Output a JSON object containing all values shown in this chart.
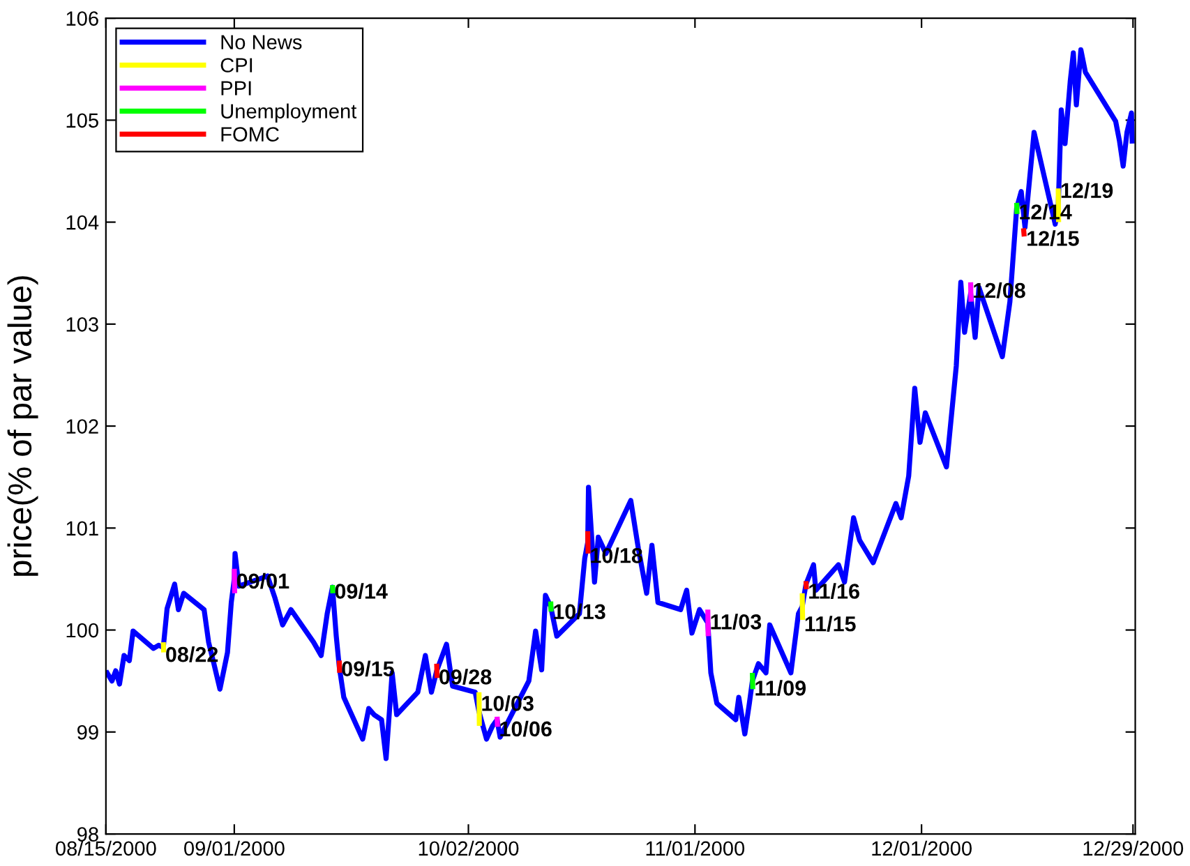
{
  "chart_data": {
    "type": "line",
    "ylabel": "price(% of par value)",
    "xlim": [
      "2000-08-15",
      "2000-12-29T07:12"
    ],
    "ylim": [
      98,
      106
    ],
    "yticks": [
      98,
      99,
      100,
      101,
      102,
      103,
      104,
      105,
      106
    ],
    "xticks": [
      {
        "value": "2000-08-15",
        "label": "08/15/2000"
      },
      {
        "value": "2000-09-01",
        "label": "09/01/2000"
      },
      {
        "value": "2000-10-02",
        "label": "10/02/2000"
      },
      {
        "value": "2000-11-01",
        "label": "11/01/2000"
      },
      {
        "value": "2000-12-01",
        "label": "12/01/2000"
      },
      {
        "value": "2000-12-29",
        "label": "12/29/2000"
      }
    ],
    "grid": false,
    "legend": "top left",
    "line_style": "solid",
    "marker": "none",
    "series": [
      {
        "name": "No News",
        "color": "#0000ff",
        "x": [
          "2000-08-15T00:00",
          "2000-08-15T19:12",
          "2000-08-16T07:12",
          "2000-08-16T19:12",
          "2000-08-17T09:36",
          "2000-08-18T02:24",
          "2000-08-18T14:24",
          "2000-08-21T07:12",
          "2000-08-22T00:00",
          "2000-08-22T14:24",
          "2000-08-23T02:24",
          "2000-08-24T02:24",
          "2000-08-24T14:24",
          "2000-08-25T07:12",
          "2000-08-28T00:00",
          "2000-08-28T14:24",
          "2000-08-29T07:12",
          "2000-08-30T02:24",
          "2000-08-31T02:24",
          "2000-08-31T14:24",
          "2000-09-01T00:00",
          "2000-09-01T02:24",
          "2000-09-01T14:24",
          "2000-09-05T09:36",
          "2000-09-06T09:36",
          "2000-09-07T09:36",
          "2000-09-08T12:00",
          "2000-09-11T12:00",
          "2000-09-12T12:00",
          "2000-09-13T07:12",
          "2000-09-14T00:00",
          "2000-09-14T12:00",
          "2000-09-14T21:36",
          "2000-09-15T12:00",
          "2000-09-18T00:00",
          "2000-09-18T19:12",
          "2000-09-19T12:00",
          "2000-09-20T12:00",
          "2000-09-21T02:24",
          "2000-09-21T21:36",
          "2000-09-22T12:00",
          "2000-09-25T07:12",
          "2000-09-26T07:12",
          "2000-09-27T02:24",
          "2000-09-27T19:12",
          "2000-09-29T02:24",
          "2000-09-29T21:36",
          "2000-10-02T21:36",
          "2000-10-03T09:36",
          "2000-10-04T09:36",
          "2000-10-05T04:48",
          "2000-10-05T19:12",
          "2000-10-06T04:48",
          "2000-10-10T00:00",
          "2000-10-10T21:36",
          "2000-10-11T16:48",
          "2000-10-12T04:48",
          "2000-10-12T21:36",
          "2000-10-13T16:48",
          "2000-10-16T16:48",
          "2000-10-17T09:36",
          "2000-10-17T19:12",
          "2000-10-17T21:36",
          "2000-10-18T16:48",
          "2000-10-19T04:48",
          "2000-10-20T04:48",
          "2000-10-23T12:00",
          "2000-10-24T12:00",
          "2000-10-25T14:24",
          "2000-10-26T07:12",
          "2000-10-27T02:24",
          "2000-10-30T02:24",
          "2000-10-30T21:36",
          "2000-10-31T14:24",
          "2000-11-01T14:24",
          "2000-11-02T16:48",
          "2000-11-03T02:24",
          "2000-11-03T21:36",
          "2000-11-06T09:36",
          "2000-11-06T19:12",
          "2000-11-07T14:24",
          "2000-11-08T04:48",
          "2000-11-08T14:24",
          "2000-11-09T09:36",
          "2000-11-10T09:36",
          "2000-11-10T21:36",
          "2000-11-13T16:48",
          "2000-11-14T16:48",
          "2000-11-15T04:48",
          "2000-11-15T16:48",
          "2000-11-16T16:48",
          "2000-11-17T00:00",
          "2000-11-20T00:00",
          "2000-11-20T19:12",
          "2000-11-22T00:00",
          "2000-11-22T19:12",
          "2000-11-24T14:24",
          "2000-11-27T14:24",
          "2000-11-28T07:12",
          "2000-11-29T07:12",
          "2000-11-30T02:24",
          "2000-11-30T19:12",
          "2000-12-01T12:00",
          "2000-12-04T07:12",
          "2000-12-05T14:24",
          "2000-12-06T04:48",
          "2000-12-06T16:48",
          "2000-12-07T12:00",
          "2000-12-08T02:24",
          "2000-12-08T14:24",
          "2000-12-11T16:48",
          "2000-12-12T16:48",
          "2000-12-13T14:24",
          "2000-12-14T04:48",
          "2000-12-14T16:48",
          "2000-12-15T21:36",
          "2000-12-18T16:48",
          "2000-12-19T02:24",
          "2000-12-19T12:00",
          "2000-12-20T00:00",
          "2000-12-20T16:48",
          "2000-12-21T02:24",
          "2000-12-21T12:00",
          "2000-12-22T02:24",
          "2000-12-22T16:48",
          "2000-12-26T16:48",
          "2000-12-27T04:48",
          "2000-12-27T16:48",
          "2000-12-28T04:48",
          "2000-12-28T19:12",
          "2000-12-28T21:36"
        ],
        "values": [
          99.6,
          99.5,
          99.6,
          99.47,
          99.75,
          99.7,
          99.99,
          99.82,
          99.85,
          99.83,
          100.21,
          100.45,
          100.2,
          100.36,
          100.2,
          99.88,
          99.67,
          99.42,
          99.78,
          100.27,
          100.5,
          100.75,
          100.43,
          100.53,
          100.31,
          100.05,
          100.2,
          99.88,
          99.75,
          100.16,
          100.42,
          99.94,
          99.64,
          99.34,
          98.93,
          99.23,
          99.17,
          99.12,
          98.74,
          99.58,
          99.17,
          99.39,
          99.75,
          99.39,
          99.6,
          99.86,
          99.45,
          99.39,
          99.2,
          98.93,
          99.06,
          99.12,
          98.95,
          99.5,
          99.99,
          99.61,
          100.34,
          100.23,
          99.94,
          100.16,
          100.7,
          100.86,
          101.4,
          100.47,
          100.91,
          100.75,
          101.27,
          100.8,
          100.36,
          100.83,
          100.27,
          100.2,
          100.39,
          99.97,
          100.2,
          100.07,
          99.58,
          99.28,
          99.12,
          99.34,
          98.98,
          99.28,
          99.5,
          99.67,
          99.58,
          100.05,
          99.58,
          100.16,
          100.23,
          100.45,
          100.64,
          100.39,
          100.64,
          100.47,
          101.1,
          100.88,
          100.66,
          101.24,
          101.1,
          101.51,
          102.37,
          101.84,
          102.13,
          101.6,
          102.59,
          103.41,
          102.92,
          103.3,
          102.87,
          103.36,
          102.68,
          103.22,
          104.14,
          104.3,
          103.95,
          104.88,
          103.98,
          104.15,
          105.1,
          104.77,
          105.39,
          105.66,
          105.15,
          105.69,
          105.47,
          104.99,
          104.8,
          104.55,
          104.88,
          105.07,
          104.77
        ]
      },
      {
        "name": "CPI",
        "color": "#ffff00",
        "x": [
          "2000-08-22T14:24",
          "2000-08-22T15:36",
          null,
          "2000-10-03T09:36",
          "2000-10-03T10:48",
          null,
          "2000-11-15T04:48",
          "2000-11-15T06:00",
          null,
          "2000-12-19T02:24",
          "2000-12-19T03:36"
        ],
        "values": [
          99.88,
          99.78,
          null,
          99.39,
          99.06,
          null,
          100.36,
          100.1,
          null,
          104.33,
          104.0
        ]
      },
      {
        "name": "PPI",
        "color": "#ff00ff",
        "x": [
          "2000-09-01T00:00",
          "2000-09-01T01:12",
          null,
          "2000-10-05T19:12",
          "2000-10-05T20:24",
          null,
          "2000-11-02T16:48",
          "2000-11-02T18:00",
          null,
          "2000-12-07T12:00",
          "2000-12-07T13:12"
        ],
        "values": [
          100.6,
          100.36,
          null,
          99.15,
          99.05,
          null,
          100.2,
          99.94,
          null,
          103.41,
          103.22
        ]
      },
      {
        "name": "Unemployment",
        "color": "#00ff00",
        "x": [
          "2000-09-14T00:00",
          "2000-09-14T01:12",
          null,
          "2000-10-12T21:36",
          "2000-10-12T22:48",
          null,
          "2000-11-08T14:24",
          "2000-11-08T15:36",
          null,
          "2000-12-13T14:24",
          "2000-12-13T15:36"
        ],
        "values": [
          100.44,
          100.36,
          null,
          100.28,
          100.18,
          null,
          99.58,
          99.42,
          null,
          104.19,
          104.08
        ]
      },
      {
        "name": "FOMC",
        "color": "#ff0000",
        "x": [
          "2000-09-14T21:36",
          "2000-09-14T22:48",
          null,
          "2000-09-27T19:12",
          "2000-09-27T20:24",
          null,
          "2000-10-17T19:12",
          "2000-10-17T20:24",
          null,
          "2000-11-15T16:48",
          "2000-11-15T18:00",
          null,
          "2000-12-14T12:00",
          "2000-12-14T14:24"
        ],
        "values": [
          99.7,
          99.58,
          null,
          99.67,
          99.53,
          null,
          100.97,
          100.75,
          null,
          100.48,
          100.4,
          null,
          103.94,
          103.86
        ]
      }
    ],
    "annotations": [
      {
        "text": "08/22",
        "x": "2000-08-22T14:24",
        "y": 99.78
      },
      {
        "text": "09/01",
        "x": "2000-09-01T00:00",
        "y": 100.5
      },
      {
        "text": "09/14",
        "x": "2000-09-14T00:00",
        "y": 100.4
      },
      {
        "text": "09/15",
        "x": "2000-09-14T21:36",
        "y": 99.64
      },
      {
        "text": "09/28",
        "x": "2000-09-27T19:12",
        "y": 99.56
      },
      {
        "text": "10/03",
        "x": "2000-10-03T09:36",
        "y": 99.3
      },
      {
        "text": "10/06",
        "x": "2000-10-05T19:12",
        "y": 99.05
      },
      {
        "text": "10/13",
        "x": "2000-10-12T21:36",
        "y": 100.2
      },
      {
        "text": "10/18",
        "x": "2000-10-17T19:12",
        "y": 100.75
      },
      {
        "text": "11/03",
        "x": "2000-11-02T16:48",
        "y": 100.1
      },
      {
        "text": "11/09",
        "x": "2000-11-08T14:24",
        "y": 99.45
      },
      {
        "text": "11/15",
        "x": "2000-11-15T04:48",
        "y": 100.08
      },
      {
        "text": "11/16",
        "x": "2000-11-15T16:48",
        "y": 100.4
      },
      {
        "text": "12/08",
        "x": "2000-12-07T12:00",
        "y": 103.35
      },
      {
        "text": "12/14",
        "x": "2000-12-13T14:24",
        "y": 104.12
      },
      {
        "text": "12/15",
        "x": "2000-12-14T14:24",
        "y": 103.86
      },
      {
        "text": "12/19",
        "x": "2000-12-19T02:24",
        "y": 104.33
      }
    ]
  }
}
